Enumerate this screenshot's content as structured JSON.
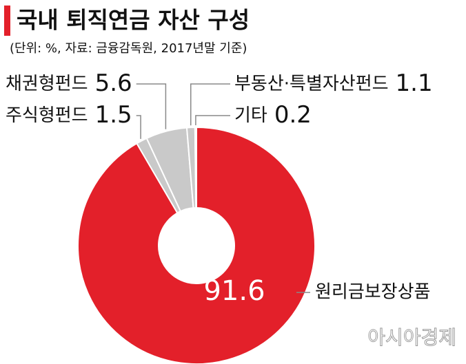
{
  "chart_data": {
    "type": "donut",
    "title": "국내 퇴직연금 자산 구성",
    "subtitle": "(단위: %, 자료: 금융감독원, 2017년말 기준)",
    "categories": [
      "원리금보장상품",
      "주식형펀드",
      "채권형펀드",
      "부동산·특별자산펀드",
      "기타"
    ],
    "values": [
      91.6,
      1.5,
      5.6,
      1.1,
      0.2
    ],
    "colors": [
      "#e3202a",
      "#c9c9c9",
      "#c9c9c9",
      "#c9c9c9",
      "#c9c9c9"
    ]
  },
  "watermark": "아시아경제"
}
